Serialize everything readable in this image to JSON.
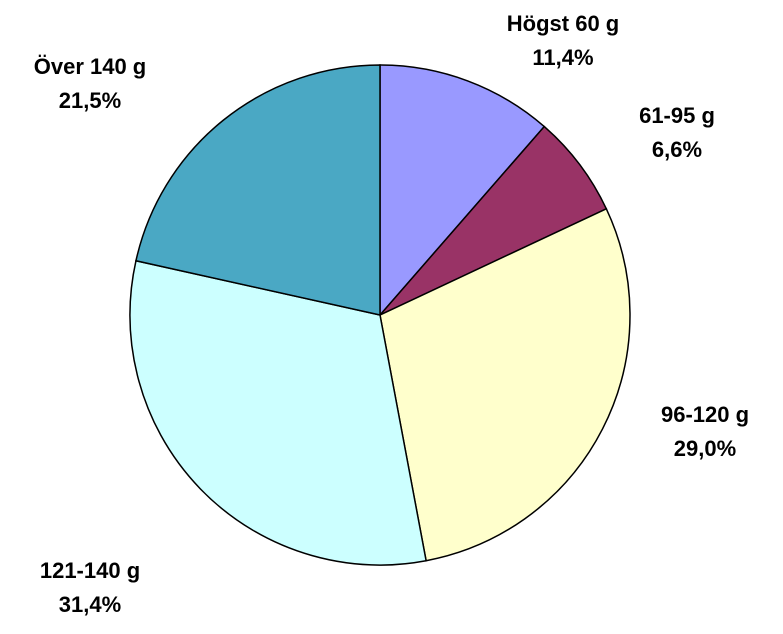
{
  "chart_data": {
    "type": "pie",
    "categories": [
      "Högst 60 g",
      "61-95 g",
      "96-120 g",
      "121-140 g",
      "Över 140 g"
    ],
    "values": [
      11.4,
      6.6,
      29.0,
      31.4,
      21.5
    ],
    "value_labels": [
      "11,4%",
      "6,6%",
      "29,0%",
      "31,4%",
      "21,5%"
    ],
    "colors": [
      "#9999ff",
      "#993366",
      "#ffffcc",
      "#ccffff",
      "#4aa8c4"
    ]
  }
}
